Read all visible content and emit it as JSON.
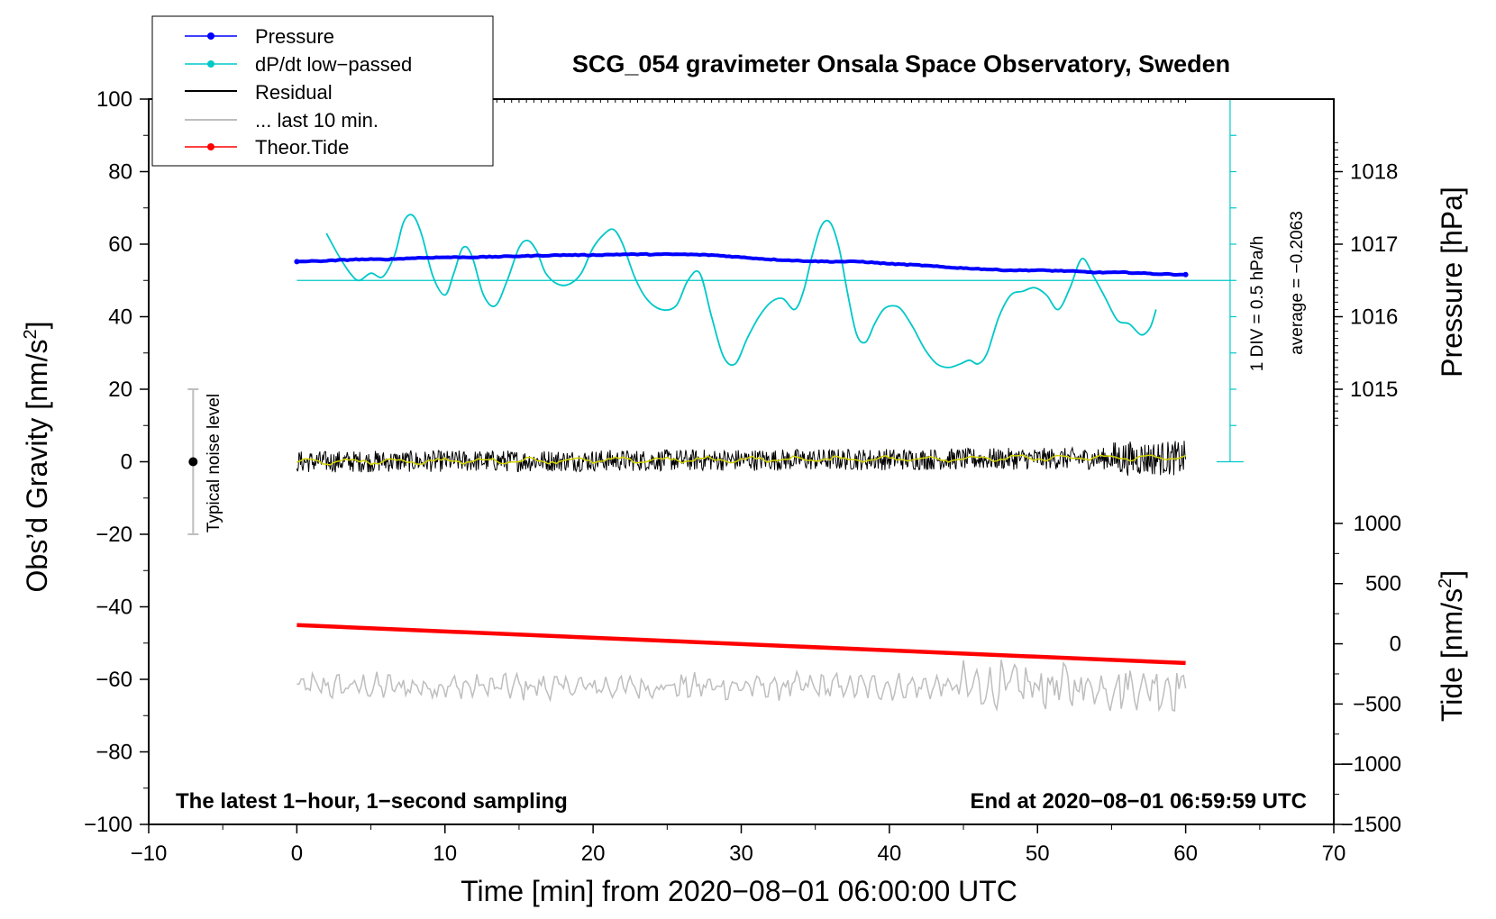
{
  "chart_data": {
    "type": "line",
    "title": "SCG_054 gravimeter Onsala Space Observatory, Sweden",
    "xlabel": "Time [min] from 2020−08−01 06:00:00 UTC",
    "ylabel_left": "Obs’d Gravity [nm/s",
    "ylabel_left_sup": "2",
    "ylabel_left_end": "]",
    "ylabel_right_pressure": "Pressure [hPa]",
    "ylabel_right_tide": "Tide [nm/s",
    "ylabel_right_tide_sup": "2",
    "ylabel_right_tide_end": "]",
    "xlim": [
      -10,
      70
    ],
    "ylim": [
      -100,
      100
    ],
    "x_ticks": [
      "−10",
      "0",
      "10",
      "20",
      "30",
      "40",
      "50",
      "60",
      "70"
    ],
    "y_ticks": [
      "−100",
      "−80",
      "−60",
      "−40",
      "−20",
      "0",
      "20",
      "40",
      "60",
      "80",
      "100"
    ],
    "pressure_ticks": [
      "1015",
      "1016",
      "1017",
      "1018"
    ],
    "pressure_tick_values": [
      1015,
      1016,
      1017,
      1018
    ],
    "pressure_mapping": {
      "hpa_at_gravity_0": 1014,
      "gravity_per_hpa": 20
    },
    "tide_ticks": [
      "−1500",
      "−1000",
      "−500",
      "0",
      "500",
      "1000"
    ],
    "tide_tick_values": [
      -1500,
      -1000,
      -500,
      0,
      500,
      1000
    ],
    "tide_mapping": {
      "tide_at_gravity_minus100": -1500,
      "tide_at_gravity_minus17": 1000
    },
    "legend": [
      {
        "label": "Pressure",
        "color": "#0000ff",
        "marker": true
      },
      {
        "label": "dP/dt low−passed",
        "color": "#00c8c8",
        "marker": true
      },
      {
        "label": "Residual",
        "color": "#000000",
        "marker": false
      },
      {
        "label": "... last 10 min.",
        "color": "#bebebe",
        "marker": false
      },
      {
        "label": "Theor.Tide",
        "color": "#ff0000",
        "marker": true
      }
    ],
    "series": [
      {
        "name": "Pressure",
        "color": "#0000ff",
        "unit": "hPa",
        "x": [
          0,
          2,
          4,
          6,
          8,
          10,
          12,
          14,
          16,
          18,
          20,
          22,
          24,
          26,
          28,
          30,
          32,
          34,
          36,
          38,
          40,
          42,
          44,
          46,
          48,
          50,
          52,
          54,
          56,
          58,
          60
        ],
        "values": [
          1016.76,
          1016.77,
          1016.79,
          1016.79,
          1016.81,
          1016.82,
          1016.82,
          1016.83,
          1016.84,
          1016.85,
          1016.85,
          1016.86,
          1016.86,
          1016.86,
          1016.85,
          1016.82,
          1016.79,
          1016.77,
          1016.76,
          1016.76,
          1016.73,
          1016.71,
          1016.68,
          1016.66,
          1016.64,
          1016.64,
          1016.63,
          1016.61,
          1016.61,
          1016.59,
          1016.58
        ]
      },
      {
        "name": "dP/dt low−passed",
        "color": "#00c8c8",
        "unit": "nm/s2 on gravity axis",
        "x": [
          2,
          2.8,
          3.6,
          4.2,
          5,
          5.8,
          6.6,
          7.2,
          7.8,
          8.4,
          9.2,
          10,
          10.6,
          11.2,
          11.8,
          12.6,
          13.4,
          14.2,
          15,
          15.6,
          16.2,
          16.8,
          17.6,
          18.4,
          19.2,
          20,
          20.8,
          21.4,
          22,
          22.8,
          23.6,
          24.6,
          25.6,
          26.4,
          27.2,
          28,
          28.8,
          29.6,
          30.4,
          31.2,
          32,
          32.8,
          33.6,
          34.2,
          34.8,
          35.4,
          36,
          36.6,
          37.2,
          37.8,
          38.4,
          39,
          39.6,
          40.2,
          40.8,
          41.6,
          42.4,
          43.2,
          44,
          44.8,
          45.4,
          46,
          46.6,
          47.4,
          48.2,
          49,
          49.8,
          50.6,
          51.4,
          52.2,
          53,
          53.8,
          54.6,
          55.4,
          56.2,
          57,
          57.6,
          58
        ],
        "values": [
          63,
          57,
          52,
          50,
          52,
          51,
          57,
          66,
          68,
          63,
          51,
          46,
          52,
          59,
          57,
          46,
          43,
          50,
          59,
          61,
          58,
          52,
          49,
          49,
          52,
          59,
          63,
          64,
          60,
          51,
          45,
          42,
          43,
          50,
          52,
          40,
          29,
          27,
          34,
          40,
          44,
          45,
          42,
          47,
          57,
          65,
          66,
          59,
          46,
          35,
          33,
          38,
          42,
          43,
          42,
          37,
          31,
          27,
          26,
          27,
          28,
          27,
          30,
          40,
          46,
          47,
          48,
          46,
          42,
          48,
          56,
          51,
          45,
          39,
          38,
          35,
          37,
          42
        ]
      },
      {
        "name": "Theor.Tide",
        "color": "#ff0000",
        "unit": "nm/s2 on tide axis",
        "x": [
          0,
          60
        ],
        "values": [
          155,
          -160
        ]
      }
    ],
    "residual_envelope": {
      "name": "Residual",
      "color": "#000000",
      "typical_amplitude": 3
    },
    "last10_envelope": {
      "name": "... last 10 min.",
      "color": "#bebebe",
      "typical_amplitude": 3,
      "offset": -62
    },
    "pressure_average": {
      "gravity_level": 50
    },
    "side_scale": {
      "label_div": "1 DIV = 0.5 hPa/h",
      "label_avg": "average = −0.2063",
      "x": 63,
      "y_min": 0,
      "y_max": 100
    },
    "noise_bar": {
      "x": -7,
      "center": 0,
      "low": -20,
      "high": 20,
      "label": "Typical noise level"
    },
    "annotation_left": "The latest 1−hour, 1−second sampling",
    "annotation_right": "End at 2020−08−01 06:59:59 UTC"
  }
}
